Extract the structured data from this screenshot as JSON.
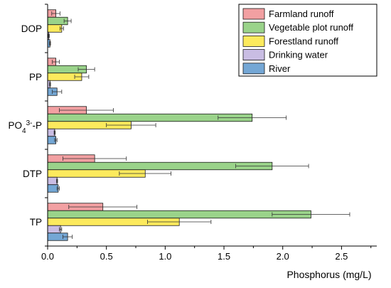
{
  "chart_data": {
    "type": "bar",
    "orientation": "horizontal",
    "xlabel": "Phosphorus (mg/L)",
    "ylabel": "",
    "title": "",
    "xlim": [
      0,
      2.8
    ],
    "xticks": [
      "0.0",
      "0.5",
      "1.0",
      "1.5",
      "2.0",
      "2.5"
    ],
    "xtick_values": [
      0,
      0.5,
      1.0,
      1.5,
      2.0,
      2.5
    ],
    "categories": [
      "DOP",
      "PP",
      "PO4 3- -P",
      "DTP",
      "TP"
    ],
    "category_labels": [
      {
        "main": "DOP",
        "sub": "",
        "sup": "",
        "suffix": ""
      },
      {
        "main": "PP",
        "sub": "",
        "sup": "",
        "suffix": ""
      },
      {
        "main": "PO",
        "sub": "4",
        "sup": "3-",
        "suffix": "-P"
      },
      {
        "main": "DTP",
        "sub": "",
        "sup": "",
        "suffix": ""
      },
      {
        "main": "TP",
        "sub": "",
        "sup": "",
        "suffix": ""
      }
    ],
    "legend_position": "top-right",
    "grid": false,
    "series": [
      {
        "name": "Farmland runoff",
        "color": "#f2a0a2",
        "values": [
          0.07,
          0.07,
          0.33,
          0.4,
          0.47
        ],
        "errors": [
          0.035,
          0.03,
          0.23,
          0.27,
          0.29
        ]
      },
      {
        "name": "Vegetable plot runoff",
        "color": "#9ad38a",
        "values": [
          0.17,
          0.33,
          1.74,
          1.91,
          2.24
        ],
        "errors": [
          0.03,
          0.07,
          0.29,
          0.31,
          0.33
        ]
      },
      {
        "name": "Forestland runoff",
        "color": "#fcea5d",
        "values": [
          0.12,
          0.29,
          0.71,
          0.83,
          1.12
        ],
        "errors": [
          0.015,
          0.06,
          0.21,
          0.22,
          0.27
        ]
      },
      {
        "name": "Drinking water",
        "color": "#c9bde3",
        "values": [
          0.01,
          0.02,
          0.06,
          0.08,
          0.11
        ],
        "errors": [
          0.005,
          0.005,
          0.005,
          0.005,
          0.01
        ]
      },
      {
        "name": "River",
        "color": "#74a7d5",
        "values": [
          0.02,
          0.08,
          0.07,
          0.09,
          0.17
        ],
        "errors": [
          0.005,
          0.04,
          0.01,
          0.01,
          0.04
        ]
      }
    ]
  }
}
